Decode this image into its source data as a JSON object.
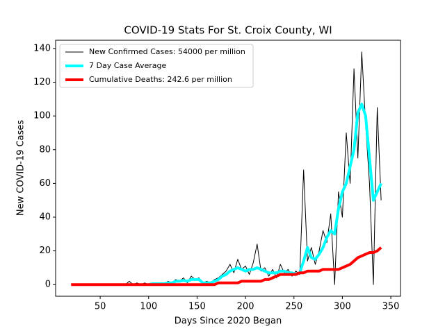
{
  "chart_data": {
    "type": "line",
    "title": "COVID-19 Stats For St. Croix County, WI",
    "x_label": "Days Since 2020 Began",
    "y_label": "New COVID-19 Cases",
    "x": [
      20,
      24,
      28,
      32,
      36,
      40,
      44,
      48,
      52,
      56,
      60,
      64,
      68,
      72,
      76,
      80,
      84,
      88,
      92,
      96,
      100,
      104,
      108,
      112,
      116,
      120,
      124,
      128,
      132,
      136,
      140,
      144,
      148,
      152,
      156,
      160,
      164,
      168,
      172,
      176,
      180,
      184,
      188,
      192,
      196,
      200,
      204,
      208,
      212,
      216,
      220,
      224,
      228,
      232,
      236,
      240,
      244,
      248,
      252,
      256,
      260,
      264,
      268,
      272,
      276,
      280,
      284,
      288,
      292,
      296,
      300,
      304,
      308,
      312,
      316,
      320,
      324,
      328,
      332,
      336,
      340
    ],
    "series": [
      {
        "name": "New Confirmed Cases: 54000 per million",
        "color": "#000000",
        "linewidth": 1,
        "values": [
          0,
          0,
          0,
          0,
          0,
          0,
          0,
          0,
          0,
          0,
          0,
          0,
          0,
          0,
          0,
          2,
          0,
          1,
          0,
          1,
          0,
          1,
          0,
          1,
          0,
          2,
          1,
          3,
          2,
          4,
          1,
          5,
          3,
          4,
          1,
          2,
          1,
          3,
          4,
          6,
          8,
          12,
          7,
          15,
          9,
          11,
          6,
          13,
          24,
          8,
          10,
          5,
          9,
          4,
          12,
          7,
          9,
          5,
          8,
          6,
          68,
          14,
          22,
          12,
          20,
          32,
          25,
          42,
          0,
          55,
          40,
          90,
          60,
          128,
          75,
          138,
          95,
          60,
          0,
          105,
          50
        ]
      },
      {
        "name": "7 Day Case Average",
        "color": "#00ffff",
        "linewidth": 4,
        "values": [
          null,
          null,
          null,
          null,
          null,
          null,
          null,
          null,
          null,
          null,
          null,
          null,
          null,
          null,
          null,
          null,
          null,
          null,
          null,
          null,
          0,
          0.5,
          0.5,
          0.5,
          0.5,
          1,
          1,
          2,
          2,
          2.5,
          2,
          3,
          3,
          3,
          1,
          1,
          1,
          2,
          3,
          5,
          6,
          8,
          9,
          10,
          9,
          8,
          9,
          9,
          10,
          9,
          8,
          7,
          7,
          7,
          8,
          8,
          7,
          7,
          6,
          7,
          14,
          22,
          16,
          15,
          18,
          22,
          28,
          32,
          30,
          45,
          55,
          60,
          70,
          80,
          102,
          107,
          100,
          75,
          50,
          55,
          60
        ]
      },
      {
        "name": "Cumulative Deaths: 242.6 per million",
        "color": "#ff0000",
        "linewidth": 4,
        "values": [
          0,
          0,
          0,
          0,
          0,
          0,
          0,
          0,
          0,
          0,
          0,
          0,
          0,
          0,
          0,
          0,
          0,
          0,
          0,
          0,
          0,
          0,
          0,
          0,
          0,
          0,
          0,
          0,
          0,
          0,
          0,
          0,
          0,
          0,
          0,
          0,
          0,
          0,
          1,
          1,
          1,
          1,
          1,
          1,
          2,
          2,
          2,
          2,
          2,
          2,
          3,
          3,
          4,
          5,
          6,
          6,
          6,
          6,
          6,
          7,
          7,
          8,
          8,
          8,
          8,
          9,
          9,
          9,
          9,
          9,
          10,
          11,
          12,
          14,
          16,
          17,
          18,
          19,
          19,
          20,
          22
        ]
      }
    ],
    "xlim": [
      4,
      360
    ],
    "ylim": [
      -6.9,
      144.9
    ],
    "xticks": [
      50,
      100,
      150,
      200,
      250,
      300,
      350
    ],
    "yticks": [
      0,
      20,
      40,
      60,
      80,
      100,
      120,
      140
    ],
    "legend": "upper left",
    "grid": false
  }
}
